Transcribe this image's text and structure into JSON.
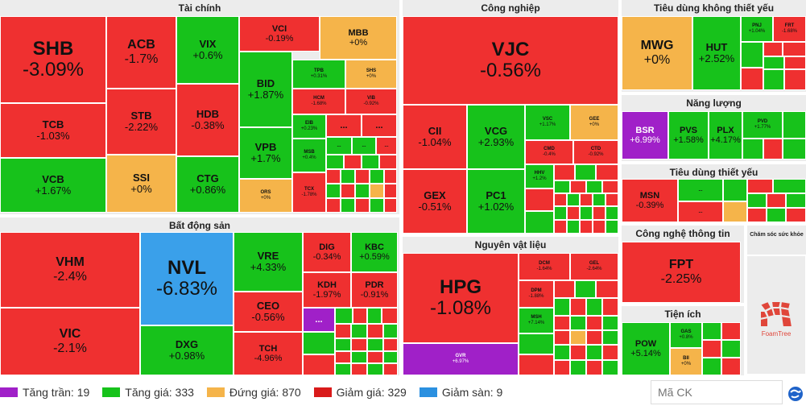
{
  "sectors": {
    "tai_chinh": "Tài chính",
    "cong_nghiep": "Công nghiệp",
    "tieu_dung_khong_thiet_yeu": "Tiêu dùng không thiết yếu",
    "nang_luong": "Năng lượng",
    "tieu_dung_thiet_yeu": "Tiêu dùng thiết yếu",
    "bat_dong_san": "Bất động sản",
    "nguyen_vat_lieu": "Nguyên vật liệu",
    "cong_nghe_thong_tin": "Công nghệ thông tin",
    "tien_ich": "Tiện ích",
    "cham_soc_suc_khoe": "Chăm sóc sức khỏe"
  },
  "colors": {
    "down": "#ef3030",
    "up": "#17c21b",
    "ref": "#f5b44a",
    "ceiling": "#a020c8",
    "floor": "#3aa0ea"
  },
  "tiles": {
    "shb": {
      "t": "SHB",
      "v": "-3.09%"
    },
    "acb": {
      "t": "ACB",
      "v": "-1.7%"
    },
    "vix": {
      "t": "VIX",
      "v": "+0.6%"
    },
    "vci": {
      "t": "VCI",
      "v": "-0.19%"
    },
    "mbb": {
      "t": "MBB",
      "v": "+0%"
    },
    "tcb": {
      "t": "TCB",
      "v": "-1.03%"
    },
    "stb": {
      "t": "STB",
      "v": "-2.22%"
    },
    "hdb": {
      "t": "HDB",
      "v": "-0.38%"
    },
    "bid": {
      "t": "BID",
      "v": "+1.87%"
    },
    "tpb": {
      "t": "TPB",
      "v": "+0.31%"
    },
    "shs": {
      "t": "SHS",
      "v": "+0%"
    },
    "hcm": {
      "t": "HCM",
      "v": "-1.68%"
    },
    "vib": {
      "t": "VIB",
      "v": "-0.92%"
    },
    "vcb": {
      "t": "VCB",
      "v": "+1.67%"
    },
    "ssi": {
      "t": "SSI",
      "v": "+0%"
    },
    "ctg": {
      "t": "CTG",
      "v": "+0.86%"
    },
    "vpb": {
      "t": "VPB",
      "v": "+1.7%"
    },
    "eib": {
      "t": "EIB",
      "v": "+0.23%"
    },
    "msb": {
      "t": "MSB",
      "v": "+0.4%"
    },
    "ors": {
      "t": "ORS",
      "v": "+0%"
    },
    "tcx": {
      "t": "TCX",
      "v": "-1.78%"
    },
    "vjc": {
      "t": "VJC",
      "v": "-0.56%"
    },
    "cii": {
      "t": "CII",
      "v": "-1.04%"
    },
    "vcg": {
      "t": "VCG",
      "v": "+2.93%"
    },
    "vsc": {
      "t": "VSC",
      "v": "+1.17%"
    },
    "gee": {
      "t": "GEE",
      "v": "+0%"
    },
    "cmd": {
      "t": "CMD",
      "v": "-0.4%"
    },
    "ctd": {
      "t": "CTD",
      "v": "-0.92%"
    },
    "gex": {
      "t": "GEX",
      "v": "-0.51%"
    },
    "pc1": {
      "t": "PC1",
      "v": "+1.02%"
    },
    "hhv": {
      "t": "HHV",
      "v": "+1.2%"
    },
    "mwg": {
      "t": "MWG",
      "v": "+0%"
    },
    "hut": {
      "t": "HUT",
      "v": "+2.52%"
    },
    "pnj": {
      "t": "PNJ",
      "v": "+1.04%"
    },
    "frt": {
      "t": "FRT",
      "v": "-1.68%"
    },
    "bsr": {
      "t": "BSR",
      "v": "+6.99%"
    },
    "pvs": {
      "t": "PVS",
      "v": "+1.58%"
    },
    "plx": {
      "t": "PLX",
      "v": "+4.17%"
    },
    "pvd": {
      "t": "PVD",
      "v": "+1.77%"
    },
    "msn": {
      "t": "MSN",
      "v": "-0.39%"
    },
    "vhm": {
      "t": "VHM",
      "v": "-2.4%"
    },
    "nvl": {
      "t": "NVL",
      "v": "-6.83%"
    },
    "vre": {
      "t": "VRE",
      "v": "+4.33%"
    },
    "dig": {
      "t": "DIG",
      "v": "-0.34%"
    },
    "kbc": {
      "t": "KBC",
      "v": "+0.59%"
    },
    "kdh": {
      "t": "KDH",
      "v": "-1.97%"
    },
    "pdr": {
      "t": "PDR",
      "v": "-0.91%"
    },
    "vic": {
      "t": "VIC",
      "v": "-2.1%"
    },
    "ceo": {
      "t": "CEO",
      "v": "-0.56%"
    },
    "dxg": {
      "t": "DXG",
      "v": "+0.98%"
    },
    "tch": {
      "t": "TCH",
      "v": "-4.96%"
    },
    "hpg": {
      "t": "HPG",
      "v": "-1.08%"
    },
    "dcm": {
      "t": "DCM",
      "v": "-1.64%"
    },
    "gel": {
      "t": "GEL",
      "v": "-2.64%"
    },
    "dpm": {
      "t": "DPM",
      "v": "-1.88%"
    },
    "msh": {
      "t": "MSH",
      "v": "+7.14%"
    },
    "gvr": {
      "t": "GVR",
      "v": "+6.97%"
    },
    "fpt": {
      "t": "FPT",
      "v": "-2.25%"
    },
    "pow": {
      "t": "POW",
      "v": "+5.14%"
    },
    "gas": {
      "t": "GAS",
      "v": "+0.8%"
    },
    "bii": {
      "t": "BII",
      "v": "+0%"
    }
  },
  "more_label": "...",
  "legend": [
    {
      "label": "Tăng trần: 19",
      "color": "#a020c8"
    },
    {
      "label": "Tăng giá: 333",
      "color": "#17c21b"
    },
    {
      "label": "Đứng giá: 870",
      "color": "#f5b44a"
    },
    {
      "label": "Giảm giá: 329",
      "color": "#d91a1a"
    },
    {
      "label": "Giảm sàn: 9",
      "color": "#2b90e0"
    }
  ],
  "search": {
    "placeholder": "Mã CK"
  },
  "logo": {
    "text": "FoamTree"
  }
}
